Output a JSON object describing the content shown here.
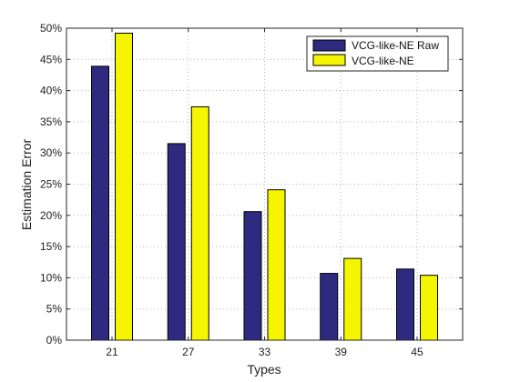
{
  "chart_data": {
    "type": "bar",
    "title": "",
    "xlabel": "Types",
    "ylabel": "Estimation Error",
    "categories": [
      "21",
      "27",
      "33",
      "39",
      "45"
    ],
    "series": [
      {
        "name": "VCG-like-NE Raw",
        "values": [
          0.439,
          0.315,
          0.206,
          0.107,
          0.114
        ],
        "color": "#2e2a7f"
      },
      {
        "name": "VCG-like-NE",
        "values": [
          0.492,
          0.374,
          0.241,
          0.131,
          0.104
        ],
        "color": "#f5f500"
      }
    ],
    "ylim": [
      0,
      0.5
    ],
    "yticks": [
      0,
      0.05,
      0.1,
      0.15,
      0.2,
      0.25,
      0.3,
      0.35,
      0.4,
      0.45,
      0.5
    ],
    "ytick_labels": [
      "0%",
      "5%",
      "10%",
      "15%",
      "20%",
      "25%",
      "30%",
      "35%",
      "40%",
      "45%",
      "50%"
    ],
    "grid": true,
    "grid_style": "dotted",
    "legend_position": "top-right",
    "bar_edge_color": "#000000"
  }
}
